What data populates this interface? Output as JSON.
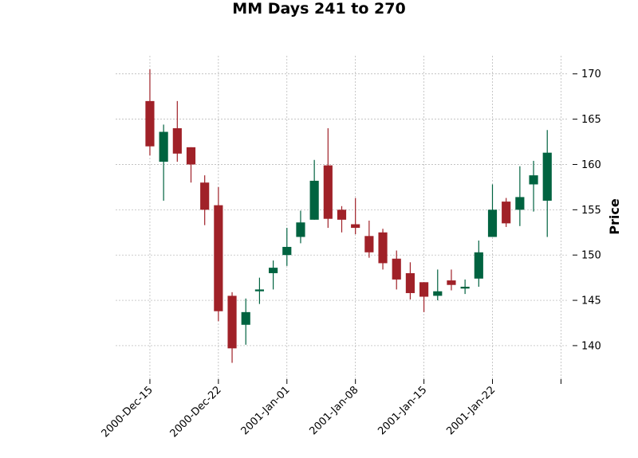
{
  "chart_data": {
    "type": "candlestick",
    "title": "MM Days 241 to 270",
    "xlabel": "",
    "ylabel": "Price",
    "ylim": [
      136.3,
      172.0
    ],
    "yticks": [
      140,
      145,
      150,
      155,
      160,
      165,
      170
    ],
    "y_axis_side": "right",
    "grid": true,
    "colors": {
      "up": "#006340",
      "down": "#a02128"
    },
    "xtick_labels": [
      {
        "index": 0,
        "label": "2000-Dec-15"
      },
      {
        "index": 5,
        "label": "2000-Dec-22"
      },
      {
        "index": 10,
        "label": "2001-Jan-01"
      },
      {
        "index": 15,
        "label": "2001-Jan-08"
      },
      {
        "index": 20,
        "label": "2001-Jan-15"
      },
      {
        "index": 25,
        "label": "2001-Jan-22"
      },
      {
        "index": 30,
        "label": ""
      }
    ],
    "x_range": [
      -2.5,
      30.5
    ],
    "candles": [
      {
        "i": 0,
        "open": 167.0,
        "high": 170.5,
        "low": 161.0,
        "close": 162.0
      },
      {
        "i": 1,
        "open": 160.3,
        "high": 164.4,
        "low": 156.0,
        "close": 163.6
      },
      {
        "i": 2,
        "open": 164.0,
        "high": 167.0,
        "low": 160.3,
        "close": 161.2
      },
      {
        "i": 3,
        "open": 161.9,
        "high": 161.9,
        "low": 158.0,
        "close": 160.0
      },
      {
        "i": 4,
        "open": 158.0,
        "high": 158.8,
        "low": 153.3,
        "close": 155.0
      },
      {
        "i": 5,
        "open": 155.5,
        "high": 157.5,
        "low": 142.7,
        "close": 143.8
      },
      {
        "i": 6,
        "open": 145.5,
        "high": 145.9,
        "low": 138.1,
        "close": 139.7
      },
      {
        "i": 7,
        "open": 142.3,
        "high": 145.2,
        "low": 140.1,
        "close": 143.7
      },
      {
        "i": 8,
        "open": 146.0,
        "high": 147.5,
        "low": 144.6,
        "close": 146.2
      },
      {
        "i": 9,
        "open": 148.0,
        "high": 149.4,
        "low": 146.2,
        "close": 148.6
      },
      {
        "i": 10,
        "open": 150.0,
        "high": 153.0,
        "low": 148.8,
        "close": 150.9
      },
      {
        "i": 11,
        "open": 152.0,
        "high": 154.9,
        "low": 151.3,
        "close": 153.6
      },
      {
        "i": 12,
        "open": 153.9,
        "high": 160.5,
        "low": 153.9,
        "close": 158.2
      },
      {
        "i": 13,
        "open": 159.9,
        "high": 164.0,
        "low": 153.0,
        "close": 154.0
      },
      {
        "i": 14,
        "open": 155.0,
        "high": 155.4,
        "low": 152.5,
        "close": 153.9
      },
      {
        "i": 15,
        "open": 153.4,
        "high": 156.3,
        "low": 152.3,
        "close": 153.0
      },
      {
        "i": 16,
        "open": 152.1,
        "high": 153.8,
        "low": 149.7,
        "close": 150.3
      },
      {
        "i": 17,
        "open": 152.5,
        "high": 152.9,
        "low": 148.4,
        "close": 149.1
      },
      {
        "i": 18,
        "open": 149.6,
        "high": 150.5,
        "low": 146.2,
        "close": 147.3
      },
      {
        "i": 19,
        "open": 148.0,
        "high": 149.2,
        "low": 145.1,
        "close": 145.8
      },
      {
        "i": 20,
        "open": 147.0,
        "high": 147.0,
        "low": 143.7,
        "close": 145.4
      },
      {
        "i": 21,
        "open": 145.5,
        "high": 148.4,
        "low": 145.0,
        "close": 146.0
      },
      {
        "i": 22,
        "open": 147.2,
        "high": 148.4,
        "low": 146.1,
        "close": 146.7
      },
      {
        "i": 23,
        "open": 146.3,
        "high": 147.3,
        "low": 145.7,
        "close": 146.5
      },
      {
        "i": 24,
        "open": 147.4,
        "high": 151.6,
        "low": 146.5,
        "close": 150.3
      },
      {
        "i": 25,
        "open": 152.0,
        "high": 157.8,
        "low": 152.0,
        "close": 155.0
      },
      {
        "i": 26,
        "open": 155.9,
        "high": 156.3,
        "low": 153.1,
        "close": 153.5
      },
      {
        "i": 27,
        "open": 155.0,
        "high": 159.8,
        "low": 153.2,
        "close": 156.4
      },
      {
        "i": 28,
        "open": 157.8,
        "high": 160.4,
        "low": 154.8,
        "close": 158.8
      },
      {
        "i": 29,
        "open": 156.0,
        "high": 163.8,
        "low": 152.0,
        "close": 161.3
      }
    ]
  }
}
